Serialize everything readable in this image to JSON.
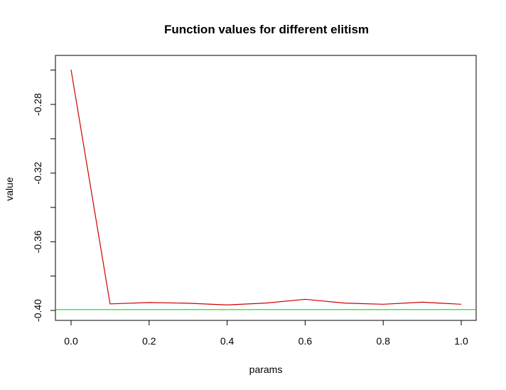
{
  "chart_data": {
    "type": "line",
    "title": "Function values for different elitism",
    "xlabel": "params",
    "ylabel": "value",
    "xlim": [
      0.0,
      1.0
    ],
    "ylim": [
      -0.404,
      -0.262
    ],
    "x_ticks": [
      "0.0",
      "0.2",
      "0.4",
      "0.6",
      "0.8",
      "1.0"
    ],
    "y_ticks": [
      "-0.40",
      "-0.36",
      "-0.32",
      "-0.28"
    ],
    "grid": false,
    "legend": "none",
    "series": [
      {
        "color": "#cc0000",
        "x": [
          0.0,
          0.1,
          0.2,
          0.3,
          0.4,
          0.5,
          0.6,
          0.7,
          0.8,
          0.9,
          1.0
        ],
        "values": [
          -0.2598,
          -0.3962,
          -0.3954,
          -0.3958,
          -0.3968,
          -0.3957,
          -0.3935,
          -0.3957,
          -0.3964,
          -0.3952,
          -0.3964
        ]
      }
    ],
    "reference_lines": [
      {
        "y": -0.3995,
        "color": "#00e000"
      }
    ]
  }
}
